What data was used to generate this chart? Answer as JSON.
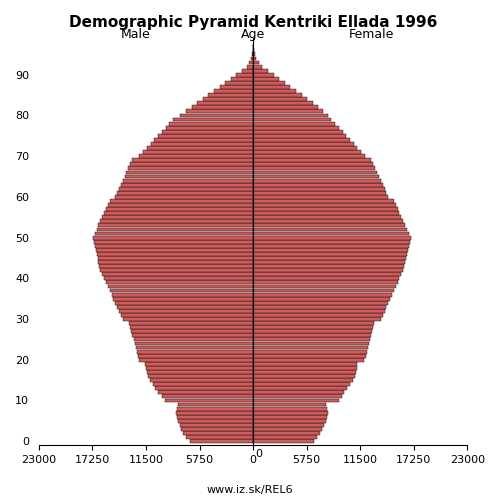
{
  "title": "Demographic Pyramid Kentriki Ellada 1996",
  "male_label": "Male",
  "female_label": "Female",
  "age_label": "Age",
  "source_label": "www.iz.sk/REL6",
  "xlim": 23000,
  "bar_color": "#cd5c5c",
  "black_edgecolor": "#000000",
  "background_color": "#ffffff",
  "male": [
    6800,
    7200,
    7500,
    7700,
    7900,
    8100,
    8200,
    8300,
    8200,
    8100,
    9500,
    9800,
    10200,
    10500,
    10800,
    11100,
    11300,
    11400,
    11500,
    11600,
    12200,
    12400,
    12500,
    12600,
    12700,
    12800,
    13000,
    13100,
    13200,
    13300,
    14000,
    14200,
    14400,
    14600,
    14800,
    15000,
    15200,
    15400,
    15600,
    15800,
    16000,
    16200,
    16400,
    16500,
    16600,
    16700,
    16800,
    16900,
    17000,
    17100,
    17200,
    17000,
    16800,
    16600,
    16400,
    16200,
    16000,
    15800,
    15600,
    15400,
    14800,
    14600,
    14400,
    14200,
    14000,
    13800,
    13600,
    13400,
    13200,
    13000,
    12200,
    11800,
    11400,
    11000,
    10600,
    10200,
    9800,
    9400,
    9000,
    8600,
    7800,
    7200,
    6600,
    6000,
    5400,
    4800,
    4200,
    3600,
    3000,
    2400,
    1800,
    1200,
    700,
    400,
    200,
    100,
    50,
    20
  ],
  "female": [
    6500,
    6900,
    7200,
    7400,
    7600,
    7800,
    7900,
    8000,
    7900,
    7800,
    9200,
    9500,
    9800,
    10100,
    10400,
    10700,
    10900,
    11000,
    11100,
    11200,
    11900,
    12100,
    12200,
    12300,
    12400,
    12500,
    12700,
    12800,
    12900,
    13000,
    13700,
    13900,
    14100,
    14300,
    14500,
    14700,
    14900,
    15100,
    15300,
    15500,
    15700,
    15900,
    16100,
    16200,
    16300,
    16400,
    16500,
    16600,
    16700,
    16800,
    16900,
    16700,
    16500,
    16300,
    16100,
    15900,
    15700,
    15500,
    15300,
    15100,
    14500,
    14300,
    14100,
    13900,
    13700,
    13500,
    13300,
    13100,
    12900,
    12700,
    12000,
    11600,
    11200,
    10800,
    10400,
    10000,
    9600,
    9200,
    8800,
    8400,
    8000,
    7500,
    7000,
    6400,
    5800,
    5200,
    4600,
    4000,
    3400,
    2800,
    2200,
    1600,
    1000,
    600,
    350,
    180,
    80,
    30
  ]
}
